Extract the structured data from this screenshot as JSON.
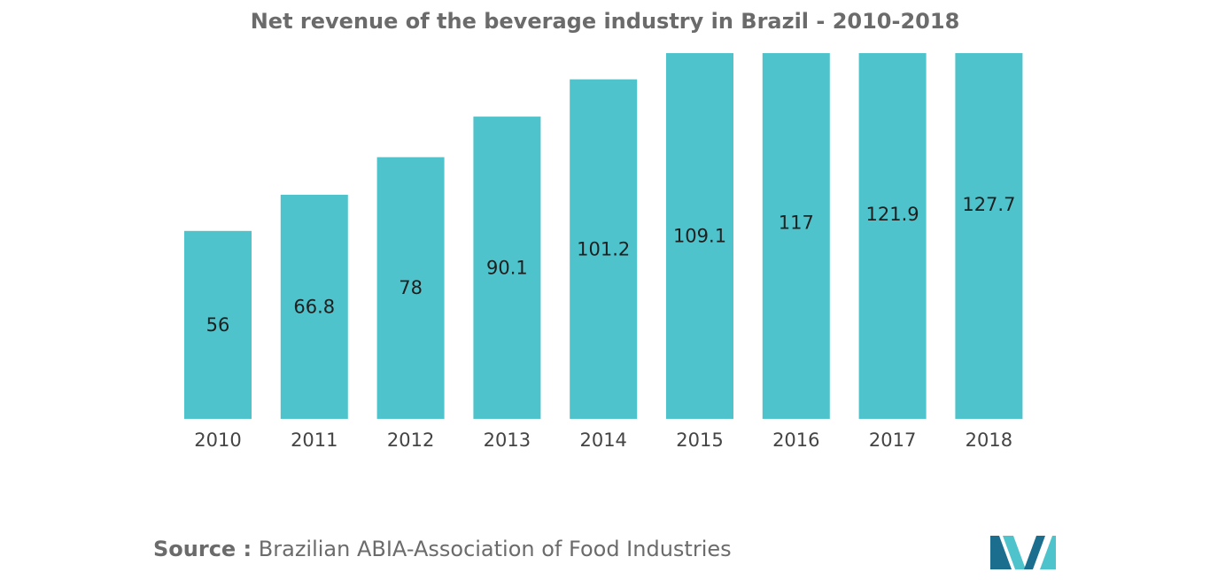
{
  "colors": {
    "bar": "#4fc3cb",
    "title": "#6b6b6b",
    "logo_dark": "#1b6e8e",
    "logo_light": "#4fc3cb"
  },
  "chart_data": {
    "type": "bar",
    "title": "Net revenue of the beverage industry in Brazil - 2010-2018",
    "categories": [
      "2010",
      "2011",
      "2012",
      "2013",
      "2014",
      "2015",
      "2016",
      "2017",
      "2018"
    ],
    "values": [
      56,
      66.8,
      78,
      90.1,
      101.2,
      109.1,
      117,
      121.9,
      127.7
    ],
    "data_labels": [
      "56",
      "66.8",
      "78",
      "90.1",
      "101.2",
      "109.1",
      "117",
      "121.9",
      "127.7"
    ],
    "xlabel": "",
    "ylabel": "",
    "ylim": [
      0,
      109
    ],
    "grid": false,
    "legend": "none"
  },
  "source": {
    "prefix": "Source :",
    "text": " Brazilian ABIA-Association of Food Industries"
  },
  "logo": {
    "icon": "mordor-logo-icon"
  }
}
